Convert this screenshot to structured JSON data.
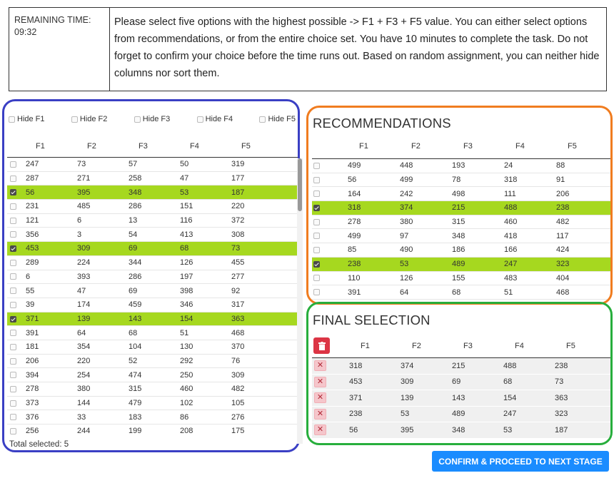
{
  "timer": {
    "label": "REMAINING TIME:",
    "value": "09:32"
  },
  "instructions": "Please select five options with the highest possible -> F1 + F3 + F5 value. You can either select options from recommendations, or from the entire choice set. You have 10 minutes to complete the task. Do not forget to confirm your choice before the time runs out. Based on random assignment, you can neither hide columns nor sort them.",
  "all_options": {
    "hide_labels": [
      "Hide F1",
      "Hide F2",
      "Hide F3",
      "Hide F4",
      "Hide F5"
    ],
    "headers": [
      "F1",
      "F2",
      "F3",
      "F4",
      "F5"
    ],
    "rows": [
      {
        "selected": false,
        "values": [
          247,
          73,
          57,
          50,
          319
        ]
      },
      {
        "selected": false,
        "values": [
          287,
          271,
          258,
          47,
          177
        ]
      },
      {
        "selected": true,
        "values": [
          56,
          395,
          348,
          53,
          187
        ]
      },
      {
        "selected": false,
        "values": [
          231,
          485,
          286,
          151,
          220
        ]
      },
      {
        "selected": false,
        "values": [
          121,
          6,
          13,
          116,
          372
        ]
      },
      {
        "selected": false,
        "values": [
          356,
          3,
          54,
          413,
          308
        ]
      },
      {
        "selected": true,
        "values": [
          453,
          309,
          69,
          68,
          73
        ]
      },
      {
        "selected": false,
        "values": [
          289,
          224,
          344,
          126,
          455
        ]
      },
      {
        "selected": false,
        "values": [
          6,
          393,
          286,
          197,
          277
        ]
      },
      {
        "selected": false,
        "values": [
          55,
          47,
          69,
          398,
          92
        ]
      },
      {
        "selected": false,
        "values": [
          39,
          174,
          459,
          346,
          317
        ]
      },
      {
        "selected": true,
        "values": [
          371,
          139,
          143,
          154,
          363
        ]
      },
      {
        "selected": false,
        "values": [
          391,
          64,
          68,
          51,
          468
        ]
      },
      {
        "selected": false,
        "values": [
          181,
          354,
          104,
          130,
          370
        ]
      },
      {
        "selected": false,
        "values": [
          206,
          220,
          52,
          292,
          76
        ]
      },
      {
        "selected": false,
        "values": [
          394,
          254,
          474,
          250,
          309
        ]
      },
      {
        "selected": false,
        "values": [
          278,
          380,
          315,
          460,
          482
        ]
      },
      {
        "selected": false,
        "values": [
          373,
          144,
          479,
          102,
          105
        ]
      },
      {
        "selected": false,
        "values": [
          376,
          33,
          183,
          86,
          276
        ]
      },
      {
        "selected": false,
        "values": [
          256,
          244,
          199,
          208,
          175
        ]
      }
    ],
    "total_selected": "Total selected: 5"
  },
  "recommendations": {
    "title": "RECOMMENDATIONS",
    "headers": [
      "F1",
      "F2",
      "F3",
      "F4",
      "F5"
    ],
    "rows": [
      {
        "selected": false,
        "values": [
          499,
          448,
          193,
          24,
          88
        ]
      },
      {
        "selected": false,
        "values": [
          56,
          499,
          78,
          318,
          91
        ]
      },
      {
        "selected": false,
        "values": [
          164,
          242,
          498,
          111,
          206
        ]
      },
      {
        "selected": true,
        "values": [
          318,
          374,
          215,
          488,
          238
        ]
      },
      {
        "selected": false,
        "values": [
          278,
          380,
          315,
          460,
          482
        ]
      },
      {
        "selected": false,
        "values": [
          499,
          97,
          348,
          418,
          117
        ]
      },
      {
        "selected": false,
        "values": [
          85,
          490,
          186,
          166,
          424
        ]
      },
      {
        "selected": true,
        "values": [
          238,
          53,
          489,
          247,
          323
        ]
      },
      {
        "selected": false,
        "values": [
          110,
          126,
          155,
          483,
          404
        ]
      },
      {
        "selected": false,
        "values": [
          391,
          64,
          68,
          51,
          468
        ]
      }
    ]
  },
  "final_selection": {
    "title": "FINAL SELECTION",
    "headers": [
      "F1",
      "F2",
      "F3",
      "F4",
      "F5"
    ],
    "rows": [
      [
        318,
        374,
        215,
        488,
        238
      ],
      [
        453,
        309,
        69,
        68,
        73
      ],
      [
        371,
        139,
        143,
        154,
        363
      ],
      [
        238,
        53,
        489,
        247,
        323
      ],
      [
        56,
        395,
        348,
        53,
        187
      ]
    ],
    "remove_symbol": "✕"
  },
  "confirm_button": "CONFIRM & PROCEED TO NEXT STAGE",
  "colors": {
    "selected_row": "#a6d81f",
    "panel_all": "#3a3fc4",
    "panel_recommendations": "#f07c1f",
    "panel_final": "#27ae3c",
    "confirm": "#1a8cff",
    "trash": "#dc3545"
  }
}
